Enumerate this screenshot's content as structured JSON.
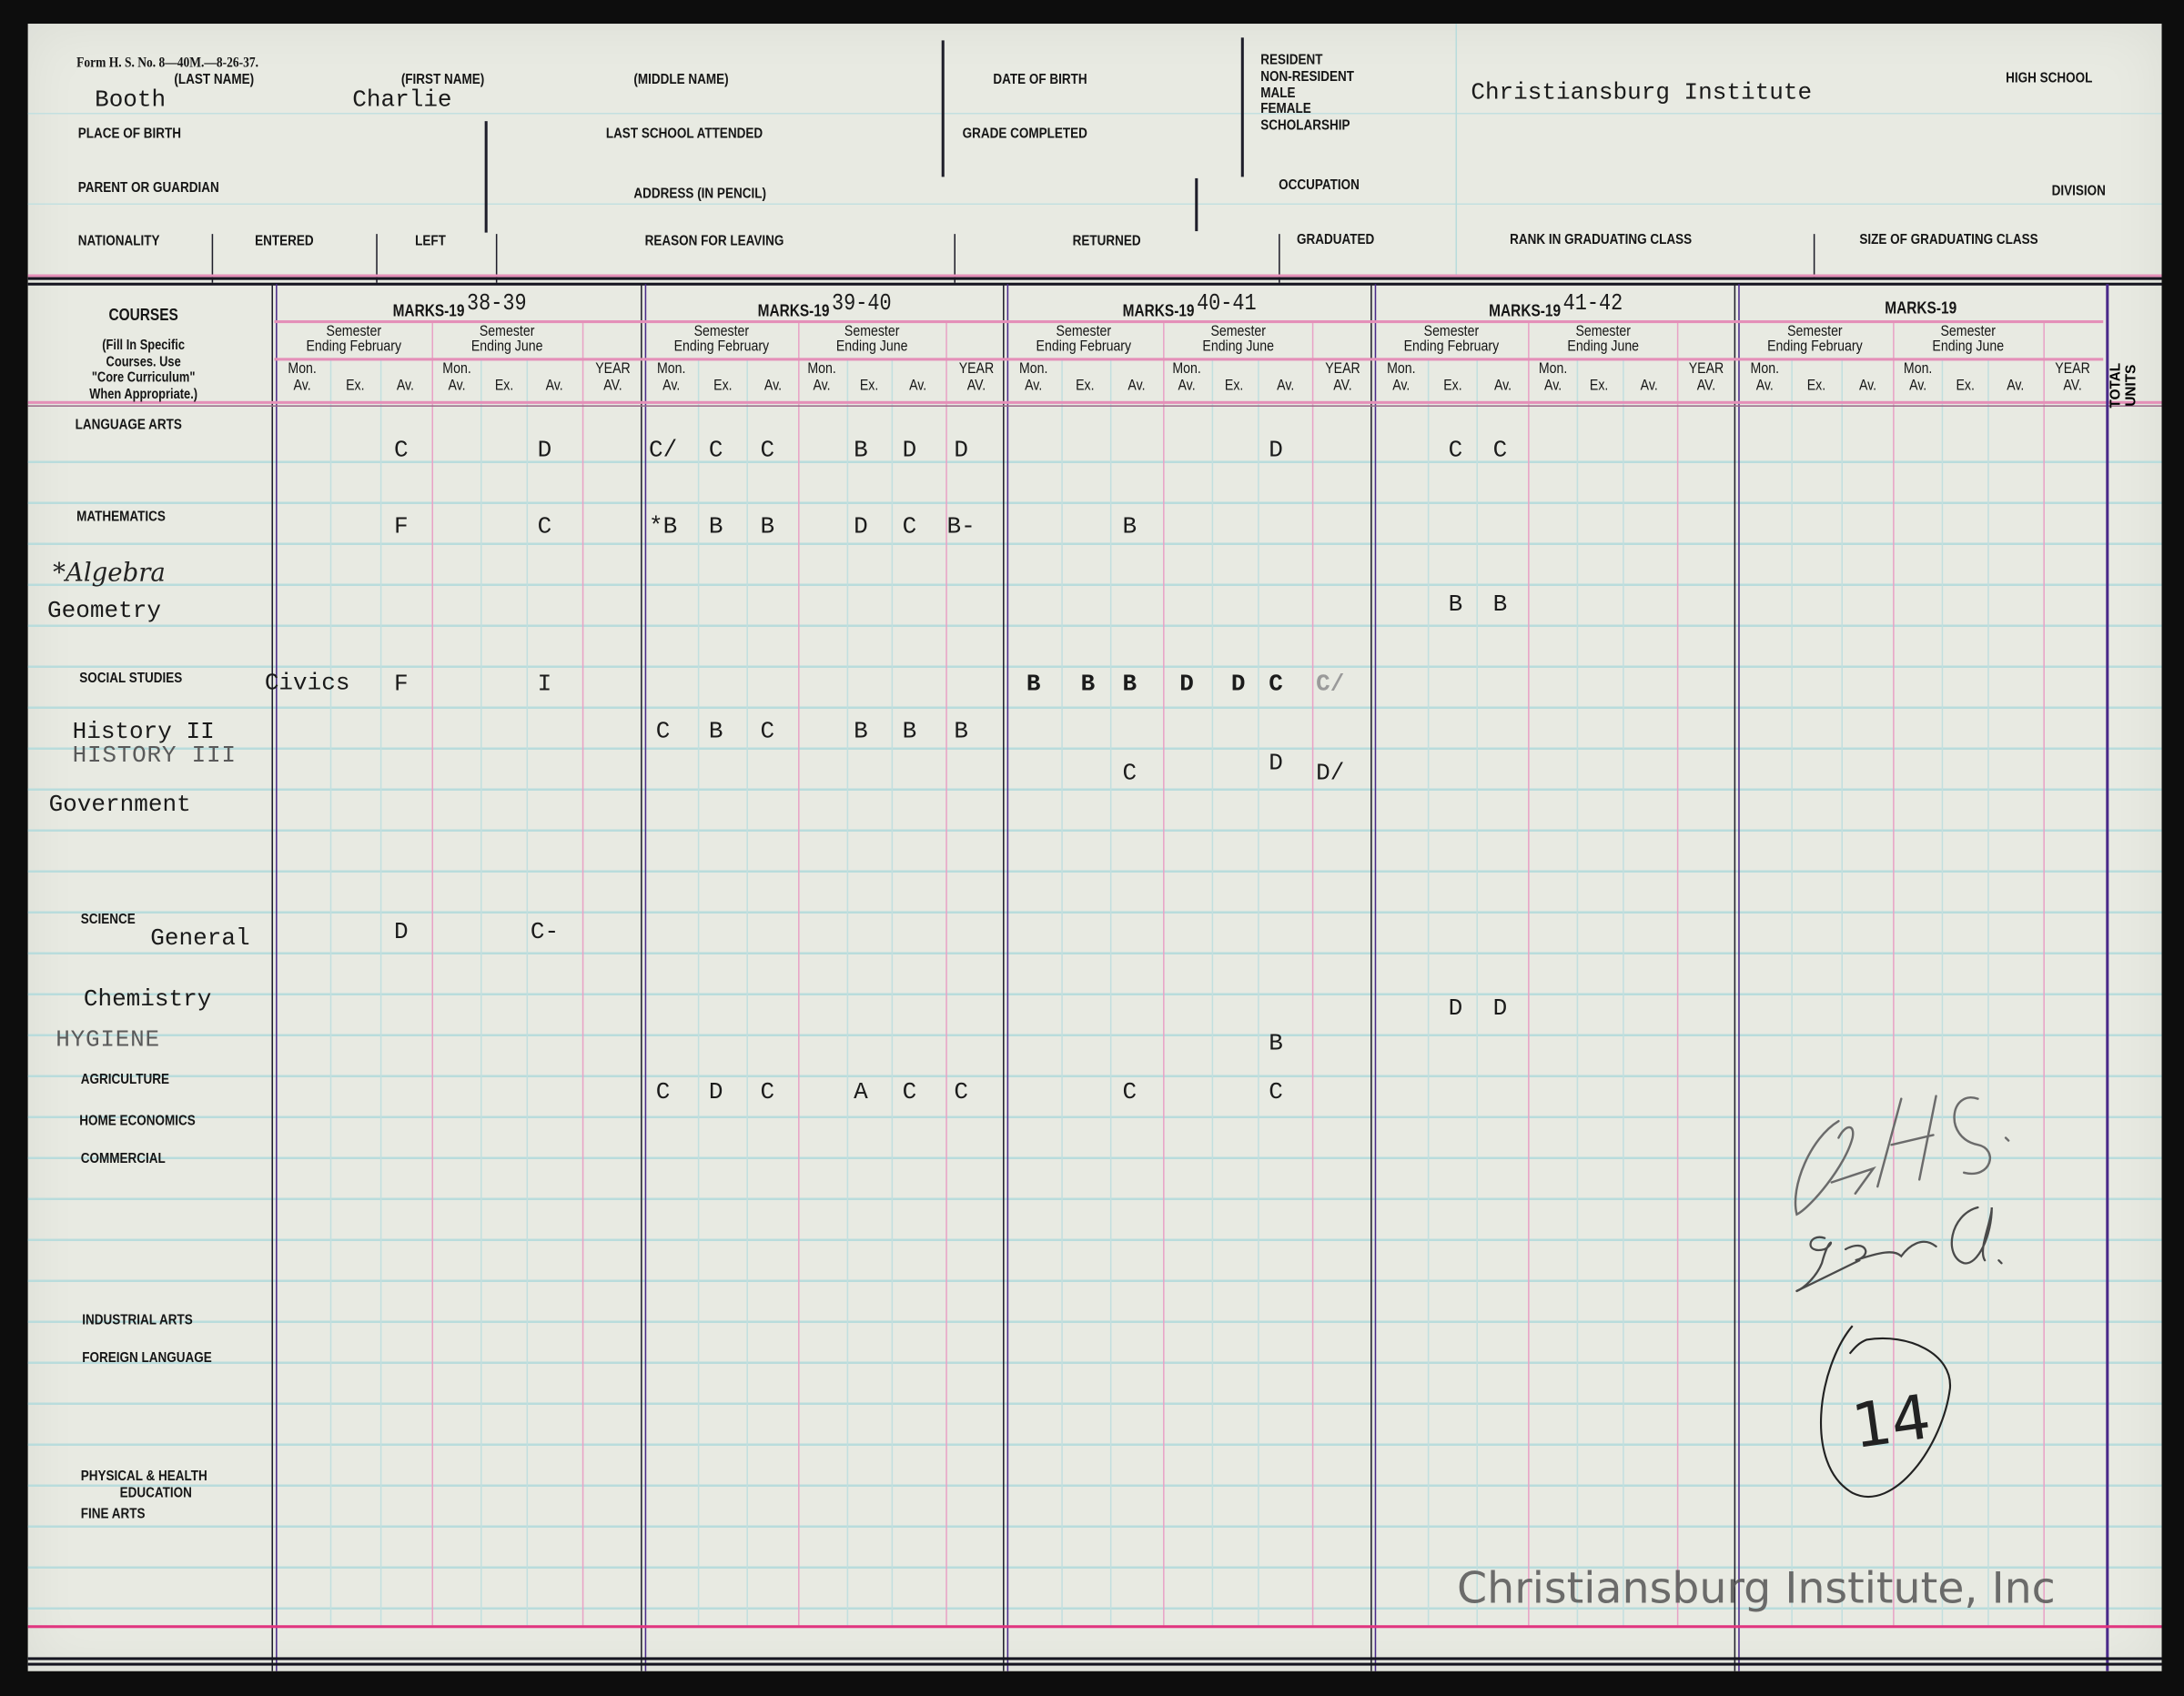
{
  "form": {
    "form_number": "Form H. S. No. 8—40M.—8-26-37.",
    "labels": {
      "last_name": "(LAST NAME)",
      "first_name": "(FIRST NAME)",
      "middle_name": "(MIDDLE NAME)",
      "date_of_birth": "DATE OF BIRTH",
      "status_options": [
        "RESIDENT",
        "NON-RESIDENT",
        "MALE",
        "FEMALE",
        "SCHOLARSHIP"
      ],
      "high_school": "HIGH SCHOOL",
      "place_of_birth": "PLACE OF BIRTH",
      "last_school_attended": "LAST SCHOOL ATTENDED",
      "grade_completed": "GRADE COMPLETED",
      "parent_or_guardian": "PARENT OR GUARDIAN",
      "address": "ADDRESS (IN PENCIL)",
      "occupation": "OCCUPATION",
      "division": "DIVISION",
      "nationality": "NATIONALITY",
      "entered": "ENTERED",
      "left": "LEFT",
      "reason_for_leaving": "REASON FOR LEAVING",
      "returned": "RETURNED",
      "graduated": "GRADUATED",
      "rank_in_class": "RANK IN GRADUATING CLASS",
      "size_of_class": "SIZE OF GRADUATING CLASS"
    }
  },
  "student": {
    "last_name": "Booth",
    "first_name": "Charlie",
    "school": "Christiansburg Institute"
  },
  "grades_table": {
    "courses_header": "COURSES",
    "courses_note": [
      "(Fill In Specific",
      "Courses.  Use",
      "\"Core Curriculum\"",
      "When Appropriate.)"
    ],
    "marks_prefix": "MARKS-19",
    "years": [
      "38-39",
      "39-40",
      "40-41",
      "41-42",
      ""
    ],
    "semester_feb": [
      "Semester",
      "Ending February"
    ],
    "semester_june": [
      "Semester",
      "Ending June"
    ],
    "column_labels": [
      [
        "Mon.",
        "Av."
      ],
      [
        "",
        "Ex."
      ],
      [
        "",
        "Av."
      ],
      [
        "Mon.",
        "Av."
      ],
      [
        "",
        "Ex."
      ],
      [
        "",
        "Av."
      ],
      [
        "YEAR",
        "AV."
      ]
    ],
    "total_units": [
      "TOTAL",
      "UNITS"
    ]
  },
  "courses": [
    {
      "label": "LANGUAGE ARTS",
      "kind": "category"
    },
    {
      "label": "MATHEMATICS",
      "kind": "category"
    },
    {
      "label": "*Algebra",
      "kind": "handwritten"
    },
    {
      "label": "Geometry",
      "kind": "typed"
    },
    {
      "label": "SOCIAL STUDIES",
      "kind": "category"
    },
    {
      "label": "Civics",
      "kind": "typed"
    },
    {
      "label": "History II",
      "kind": "typed"
    },
    {
      "label": "HISTORY III",
      "kind": "typed-light"
    },
    {
      "label": "Government",
      "kind": "typed"
    },
    {
      "label": "SCIENCE",
      "kind": "category"
    },
    {
      "label": "General",
      "kind": "typed"
    },
    {
      "label": "Chemistry",
      "kind": "typed"
    },
    {
      "label": "HYGIENE",
      "kind": "typed-light"
    },
    {
      "label": "AGRICULTURE",
      "kind": "category"
    },
    {
      "label": "HOME ECONOMICS",
      "kind": "category"
    },
    {
      "label": "COMMERCIAL",
      "kind": "category"
    },
    {
      "label": "INDUSTRIAL ARTS",
      "kind": "category"
    },
    {
      "label": "FOREIGN LANGUAGE",
      "kind": "category"
    },
    {
      "label": "PHYSICAL & HEALTH",
      "kind": "category"
    },
    {
      "label": "EDUCATION",
      "kind": "category"
    },
    {
      "label": "FINE ARTS",
      "kind": "category"
    }
  ],
  "grade_rows": [
    {
      "course": "Language Arts",
      "marks": [
        {
          "year": 0,
          "col": 2,
          "mark": "C"
        },
        {
          "year": 0,
          "col": 5,
          "mark": "D"
        },
        {
          "year": 1,
          "col": 0,
          "mark": "C/"
        },
        {
          "year": 1,
          "col": 1,
          "mark": "C"
        },
        {
          "year": 1,
          "col": 2,
          "mark": "C"
        },
        {
          "year": 1,
          "col": 3,
          "mark": "B"
        },
        {
          "year": 1,
          "col": 4,
          "mark": "D"
        },
        {
          "year": 1,
          "col": 5,
          "mark": "D"
        },
        {
          "year": 2,
          "col": 5,
          "mark": "D"
        },
        {
          "year": 3,
          "col": 1,
          "mark": "C"
        },
        {
          "year": 3,
          "col": 2,
          "mark": "C"
        }
      ]
    },
    {
      "course": "Mathematics / Algebra",
      "marks": [
        {
          "year": 0,
          "col": 2,
          "mark": "F"
        },
        {
          "year": 0,
          "col": 5,
          "mark": "C"
        },
        {
          "year": 1,
          "col": 0,
          "mark": "*B"
        },
        {
          "year": 1,
          "col": 1,
          "mark": "B"
        },
        {
          "year": 1,
          "col": 2,
          "mark": "B"
        },
        {
          "year": 1,
          "col": 3,
          "mark": "D"
        },
        {
          "year": 1,
          "col": 4,
          "mark": "C"
        },
        {
          "year": 1,
          "col": 5,
          "mark": "B-"
        },
        {
          "year": 2,
          "col": 2,
          "mark": "B"
        }
      ]
    },
    {
      "course": "Geometry",
      "marks": [
        {
          "year": 3,
          "col": 1,
          "mark": "B"
        },
        {
          "year": 3,
          "col": 2,
          "mark": "B"
        }
      ]
    },
    {
      "course": "Civics",
      "marks": [
        {
          "year": 0,
          "col": 2,
          "mark": "F"
        },
        {
          "year": 0,
          "col": 5,
          "mark": "I"
        },
        {
          "year": 2,
          "col": 0,
          "mark": "B"
        },
        {
          "year": 2,
          "col": 1,
          "mark": "B"
        },
        {
          "year": 2,
          "col": 2,
          "mark": "B"
        },
        {
          "year": 2,
          "col": 3,
          "mark": "D"
        },
        {
          "year": 2,
          "col": 4,
          "mark": "D"
        },
        {
          "year": 2,
          "col": 5,
          "mark": "C"
        },
        {
          "year": 2,
          "col": 6,
          "mark": "C/"
        }
      ]
    },
    {
      "course": "History II",
      "marks": [
        {
          "year": 1,
          "col": 0,
          "mark": "C"
        },
        {
          "year": 1,
          "col": 1,
          "mark": "B"
        },
        {
          "year": 1,
          "col": 2,
          "mark": "C"
        },
        {
          "year": 1,
          "col": 3,
          "mark": "B"
        },
        {
          "year": 1,
          "col": 4,
          "mark": "B"
        },
        {
          "year": 1,
          "col": 5,
          "mark": "B"
        }
      ]
    },
    {
      "course": "History III",
      "marks": [
        {
          "year": 2,
          "col": 2,
          "mark": "C"
        },
        {
          "year": 2,
          "col": 5,
          "mark": "D"
        },
        {
          "year": 2,
          "col": 6,
          "mark": "D/"
        }
      ]
    },
    {
      "course": "General Science",
      "marks": [
        {
          "year": 0,
          "col": 2,
          "mark": "D"
        },
        {
          "year": 0,
          "col": 5,
          "mark": "C-"
        }
      ]
    },
    {
      "course": "Chemistry",
      "marks": [
        {
          "year": 3,
          "col": 1,
          "mark": "D"
        },
        {
          "year": 3,
          "col": 2,
          "mark": "D"
        }
      ]
    },
    {
      "course": "Hygiene",
      "marks": [
        {
          "year": 2,
          "col": 5,
          "mark": "B"
        }
      ]
    },
    {
      "course": "Agriculture",
      "marks": [
        {
          "year": 1,
          "col": 0,
          "mark": "C"
        },
        {
          "year": 1,
          "col": 1,
          "mark": "D"
        },
        {
          "year": 1,
          "col": 2,
          "mark": "C"
        },
        {
          "year": 1,
          "col": 3,
          "mark": "A"
        },
        {
          "year": 1,
          "col": 4,
          "mark": "C"
        },
        {
          "year": 1,
          "col": 5,
          "mark": "C"
        },
        {
          "year": 2,
          "col": 2,
          "mark": "C"
        },
        {
          "year": 2,
          "col": 5,
          "mark": "C"
        }
      ]
    }
  ],
  "annotations": {
    "pencil_note": "OK HS. 9 grd.",
    "circled_number": "14"
  },
  "watermark": "Christiansburg Institute, Inc",
  "colors": {
    "paper": "#e8eae2",
    "rule_cyan": "#b9dcdc",
    "rule_pink": "#e48fb8",
    "rule_dark": "#1e1e2a",
    "rule_purple": "#4a2a8a"
  }
}
